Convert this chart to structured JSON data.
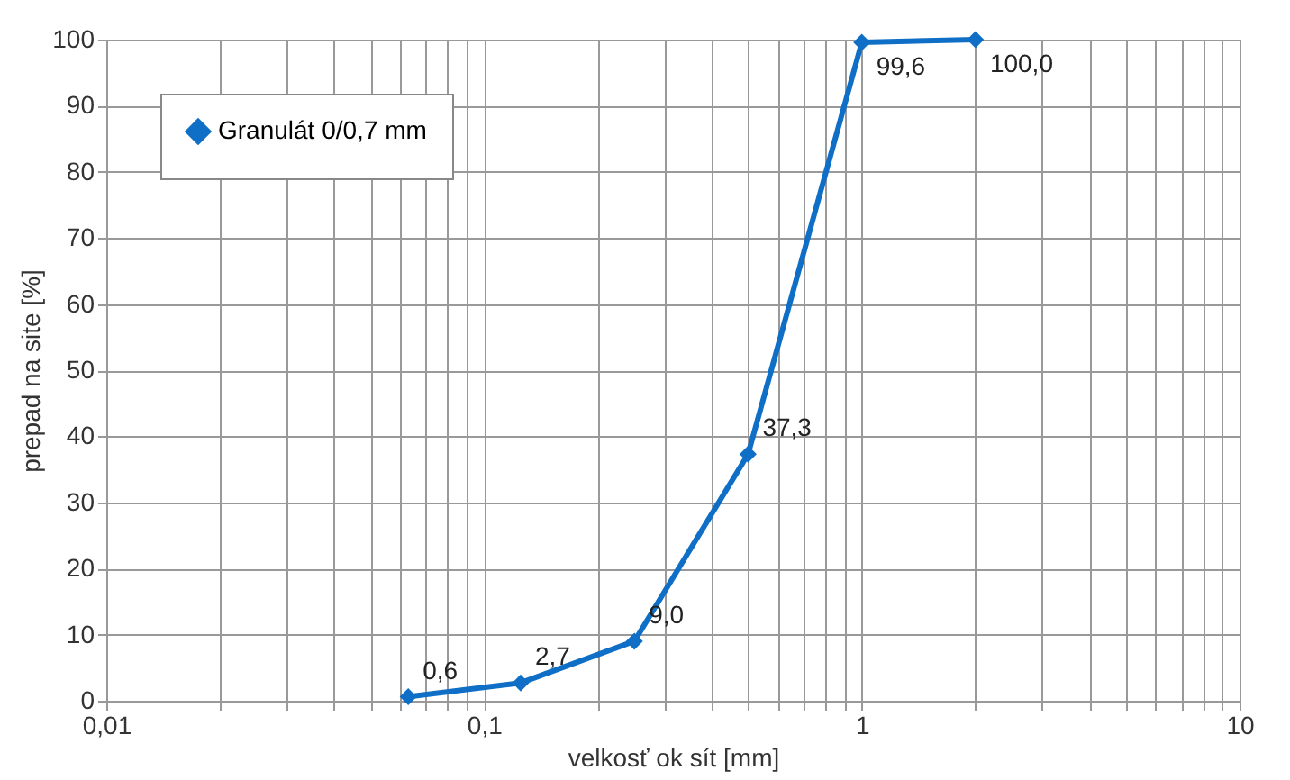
{
  "chart_data": {
    "type": "line",
    "xlabel": "velkosť ok sít [mm]",
    "ylabel": "prepad na site [%]",
    "x": [
      0.063,
      0.125,
      0.25,
      0.5,
      1,
      2
    ],
    "series": [
      {
        "name": "Granulát 0/0,7 mm",
        "color": "#0f6fc6",
        "values": [
          0.6,
          2.7,
          9.0,
          37.3,
          99.6,
          100.0
        ],
        "value_labels": [
          "0,6",
          "2,7",
          "9,0",
          "37,3",
          "99,6",
          "100,0"
        ]
      }
    ],
    "log": "x",
    "xlim": [
      0.01,
      10
    ],
    "ylim": [
      0,
      100
    ],
    "xticks": [
      {
        "value": 0.01,
        "label": "0,01"
      },
      {
        "value": 0.02,
        "label": null
      },
      {
        "value": 0.03,
        "label": null
      },
      {
        "value": 0.04,
        "label": null
      },
      {
        "value": 0.05,
        "label": null
      },
      {
        "value": 0.06,
        "label": null
      },
      {
        "value": 0.07,
        "label": null
      },
      {
        "value": 0.08,
        "label": null
      },
      {
        "value": 0.09,
        "label": null
      },
      {
        "value": 0.1,
        "label": "0,1"
      },
      {
        "value": 0.2,
        "label": null
      },
      {
        "value": 0.3,
        "label": null
      },
      {
        "value": 0.4,
        "label": null
      },
      {
        "value": 0.5,
        "label": null
      },
      {
        "value": 0.6,
        "label": null
      },
      {
        "value": 0.7,
        "label": null
      },
      {
        "value": 0.8,
        "label": null
      },
      {
        "value": 0.9,
        "label": null
      },
      {
        "value": 1,
        "label": "1"
      },
      {
        "value": 2,
        "label": null
      },
      {
        "value": 3,
        "label": null
      },
      {
        "value": 4,
        "label": null
      },
      {
        "value": 5,
        "label": null
      },
      {
        "value": 6,
        "label": null
      },
      {
        "value": 7,
        "label": null
      },
      {
        "value": 8,
        "label": null
      },
      {
        "value": 9,
        "label": null
      },
      {
        "value": 10,
        "label": "10"
      }
    ],
    "yticks": [
      0,
      10,
      20,
      30,
      40,
      50,
      60,
      70,
      80,
      90,
      100
    ],
    "grid": true,
    "legend": "top left",
    "marker": "diamond",
    "line_style": "solid"
  }
}
